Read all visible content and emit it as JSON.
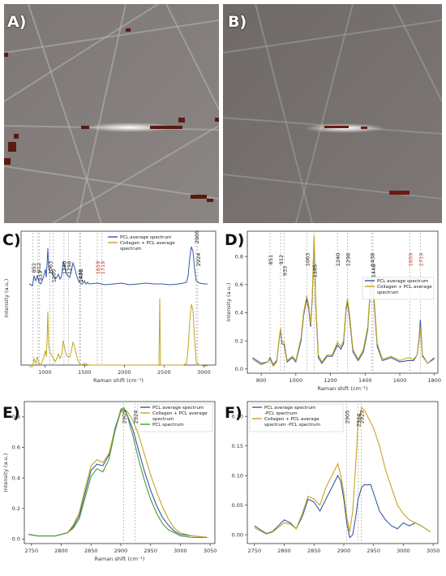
{
  "panels": {
    "a": "A)",
    "b": "B)",
    "c": "C)",
    "d": "D)",
    "e": "E)",
    "f": "F)"
  },
  "colors": {
    "pcl_avg": "#3558a8",
    "collagen_pcl": "#c4a61e",
    "pcl_spectrum": "#4c9a3a",
    "highlight_red": "#c0392b"
  },
  "chart_data": [
    {
      "id": "C",
      "type": "line",
      "xlabel": "Raman shift (cm⁻¹)",
      "ylabel": "Intensity (a.u.)",
      "xlim": [
        700,
        3150
      ],
      "x_ticks": [
        1000,
        1500,
        2000,
        2500,
        3000
      ],
      "legend": [
        "PCL average spectrum",
        "Collagen + PCL average spectrum"
      ],
      "legend_position": "top-center",
      "peak_labels": [
        {
          "x": 851,
          "text": "851",
          "color": "#222"
        },
        {
          "x": 912,
          "text": "912",
          "color": "#222"
        },
        {
          "x": 933,
          "text": "933",
          "color": "#222"
        },
        {
          "x": 1063,
          "text": "1063",
          "color": "#222"
        },
        {
          "x": 1105,
          "text": "1105",
          "color": "#222"
        },
        {
          "x": 1240,
          "text": "1240",
          "color": "#222"
        },
        {
          "x": 1298,
          "text": "1298",
          "color": "#222"
        },
        {
          "x": 1438,
          "text": "1438",
          "color": "#222"
        },
        {
          "x": 1446,
          "text": "1446",
          "color": "#222"
        },
        {
          "x": 1659,
          "text": "1659",
          "color": "#c0392b"
        },
        {
          "x": 1719,
          "text": "1719",
          "color": "#c0392b"
        },
        {
          "x": 2905,
          "text": "2905",
          "color": "#222"
        },
        {
          "x": 2924,
          "text": "2924",
          "color": "#222"
        }
      ]
    },
    {
      "id": "D",
      "type": "line",
      "xlabel": "Raman shift (cm⁻¹)",
      "ylabel": "Intensity (a.u.)",
      "xlim": [
        720,
        1820
      ],
      "ylim": [
        -0.03,
        0.98
      ],
      "x_ticks": [
        800,
        1000,
        1200,
        1400,
        1600,
        1800
      ],
      "y_ticks": [
        0.0,
        0.2,
        0.4,
        0.6,
        0.8
      ],
      "legend": [
        "PCL average spectrum",
        "Collagen + PCL average spectrum"
      ],
      "legend_position": "center-right",
      "peak_labels": [
        {
          "x": 851,
          "text": "851",
          "color": "#222"
        },
        {
          "x": 912,
          "text": "912",
          "color": "#222"
        },
        {
          "x": 933,
          "text": "933",
          "color": "#222"
        },
        {
          "x": 1063,
          "text": "1063",
          "color": "#222"
        },
        {
          "x": 1105,
          "text": "1105",
          "color": "#222"
        },
        {
          "x": 1240,
          "text": "1240",
          "color": "#222"
        },
        {
          "x": 1298,
          "text": "1298",
          "color": "#222"
        },
        {
          "x": 1438,
          "text": "1438",
          "color": "#222"
        },
        {
          "x": 1446,
          "text": "1446",
          "color": "#222"
        },
        {
          "x": 1659,
          "text": "1659",
          "color": "#c0392b"
        },
        {
          "x": 1719,
          "text": "1719",
          "color": "#c0392b"
        }
      ],
      "series": [
        {
          "name": "PCL average spectrum",
          "color": "#3558a8",
          "x": [
            750,
            800,
            840,
            851,
            870,
            890,
            905,
            912,
            920,
            933,
            950,
            980,
            1000,
            1030,
            1045,
            1063,
            1075,
            1085,
            1095,
            1105,
            1115,
            1130,
            1150,
            1180,
            1210,
            1240,
            1260,
            1275,
            1290,
            1298,
            1310,
            1330,
            1360,
            1390,
            1415,
            1430,
            1438,
            1446,
            1455,
            1470,
            1500,
            1550,
            1600,
            1650,
            1680,
            1700,
            1712,
            1719,
            1730,
            1760,
            1800
          ],
          "y": [
            0.08,
            0.04,
            0.05,
            0.08,
            0.03,
            0.06,
            0.22,
            0.28,
            0.18,
            0.17,
            0.05,
            0.08,
            0.05,
            0.2,
            0.38,
            0.5,
            0.42,
            0.3,
            0.5,
            0.93,
            0.45,
            0.08,
            0.04,
            0.09,
            0.09,
            0.17,
            0.14,
            0.18,
            0.42,
            0.48,
            0.36,
            0.12,
            0.06,
            0.12,
            0.28,
            0.56,
            0.63,
            0.58,
            0.42,
            0.16,
            0.06,
            0.08,
            0.05,
            0.06,
            0.06,
            0.1,
            0.22,
            0.35,
            0.1,
            0.04,
            0.08
          ]
        },
        {
          "name": "Collagen + PCL average spectrum",
          "color": "#c4a61e",
          "x": [
            750,
            800,
            840,
            851,
            870,
            890,
            905,
            912,
            920,
            933,
            950,
            980,
            1000,
            1030,
            1045,
            1063,
            1075,
            1085,
            1095,
            1105,
            1115,
            1130,
            1150,
            1180,
            1210,
            1240,
            1260,
            1275,
            1290,
            1298,
            1310,
            1330,
            1360,
            1390,
            1415,
            1430,
            1438,
            1446,
            1455,
            1470,
            1500,
            1550,
            1600,
            1650,
            1680,
            1700,
            1712,
            1719,
            1730,
            1760,
            1800
          ],
          "y": [
            0.07,
            0.03,
            0.05,
            0.07,
            0.02,
            0.05,
            0.23,
            0.29,
            0.2,
            0.19,
            0.06,
            0.09,
            0.06,
            0.22,
            0.4,
            0.52,
            0.45,
            0.32,
            0.52,
            0.95,
            0.48,
            0.1,
            0.05,
            0.1,
            0.1,
            0.19,
            0.16,
            0.2,
            0.44,
            0.5,
            0.39,
            0.14,
            0.07,
            0.14,
            0.3,
            0.58,
            0.65,
            0.6,
            0.45,
            0.18,
            0.07,
            0.09,
            0.06,
            0.08,
            0.07,
            0.1,
            0.2,
            0.3,
            0.09,
            0.04,
            0.07
          ]
        }
      ]
    },
    {
      "id": "E",
      "type": "line",
      "xlabel": "Raman shift (cm⁻¹)",
      "ylabel": "Intensity (a.u.)",
      "xlim": [
        2738,
        3058
      ],
      "ylim": [
        -0.03,
        0.9
      ],
      "x_ticks": [
        2750,
        2800,
        2850,
        2900,
        2950,
        3000,
        3050
      ],
      "y_ticks": [
        0.0,
        0.2,
        0.4,
        0.6,
        0.8
      ],
      "legend": [
        "PCL average spectrum",
        "Collagen + PCL average spectrum",
        "PCL spectrum"
      ],
      "legend_position": "top-right",
      "peak_labels": [
        {
          "x": 2905,
          "text": "2905",
          "color": "#222"
        },
        {
          "x": 2924,
          "text": "2924",
          "color": "#222"
        }
      ],
      "series": [
        {
          "name": "PCL average spectrum",
          "color": "#3558a8",
          "x": [
            2745,
            2760,
            2775,
            2790,
            2800,
            2810,
            2820,
            2830,
            2840,
            2850,
            2860,
            2870,
            2880,
            2890,
            2900,
            2905,
            2910,
            2920,
            2930,
            2940,
            2950,
            2960,
            2970,
            2980,
            2990,
            3000,
            3020,
            3045
          ],
          "y": [
            0.03,
            0.02,
            0.02,
            0.02,
            0.03,
            0.04,
            0.08,
            0.15,
            0.3,
            0.45,
            0.49,
            0.48,
            0.55,
            0.72,
            0.84,
            0.85,
            0.82,
            0.72,
            0.58,
            0.44,
            0.32,
            0.22,
            0.14,
            0.09,
            0.05,
            0.03,
            0.02,
            0.01
          ]
        },
        {
          "name": "Collagen + PCL average spectrum",
          "color": "#c4a61e",
          "x": [
            2745,
            2760,
            2775,
            2790,
            2800,
            2810,
            2820,
            2830,
            2840,
            2850,
            2860,
            2870,
            2880,
            2890,
            2900,
            2905,
            2910,
            2920,
            2930,
            2940,
            2950,
            2960,
            2970,
            2980,
            2990,
            3000,
            3020,
            3045
          ],
          "y": [
            0.03,
            0.02,
            0.02,
            0.02,
            0.03,
            0.04,
            0.09,
            0.17,
            0.33,
            0.48,
            0.52,
            0.5,
            0.56,
            0.71,
            0.83,
            0.85,
            0.84,
            0.78,
            0.68,
            0.55,
            0.42,
            0.31,
            0.21,
            0.13,
            0.07,
            0.04,
            0.02,
            0.01
          ]
        },
        {
          "name": "PCL spectrum",
          "color": "#4c9a3a",
          "x": [
            2745,
            2760,
            2775,
            2790,
            2800,
            2810,
            2820,
            2830,
            2840,
            2850,
            2860,
            2870,
            2880,
            2890,
            2900,
            2905,
            2910,
            2920,
            2930,
            2940,
            2950,
            2960,
            2970,
            2980,
            2990,
            3000,
            3020,
            3045
          ],
          "y": [
            0.03,
            0.02,
            0.02,
            0.02,
            0.03,
            0.04,
            0.07,
            0.13,
            0.27,
            0.41,
            0.46,
            0.44,
            0.52,
            0.7,
            0.85,
            0.86,
            0.82,
            0.68,
            0.52,
            0.38,
            0.26,
            0.17,
            0.1,
            0.06,
            0.04,
            0.02,
            0.01,
            0.01
          ]
        }
      ]
    },
    {
      "id": "F",
      "type": "line",
      "xlim": [
        2738,
        3058
      ],
      "ylim": [
        -0.015,
        0.225
      ],
      "x_ticks": [
        2750,
        2800,
        2850,
        2900,
        2950,
        3000,
        3050
      ],
      "y_ticks": [
        0.0,
        0.05,
        0.1,
        0.15,
        0.2
      ],
      "y_tick_labels": [
        "0.00",
        "0.05",
        "0.10",
        "0.15",
        "0.20"
      ],
      "legend": [
        "PCL average spectrum -PCL spectrum",
        "Collagen + PCL average spectrum -PCL spectrum"
      ],
      "legend_position": "top-left",
      "peak_labels": [
        {
          "x": 2905,
          "text": "2905",
          "color": "#222"
        },
        {
          "x": 2924,
          "text": "2924",
          "color": "#222"
        },
        {
          "x": 2929,
          "text": "2929",
          "color": "#222"
        }
      ],
      "series": [
        {
          "name": "PCL average spectrum -PCL spectrum",
          "color": "#3558a8",
          "x": [
            2750,
            2760,
            2770,
            2780,
            2790,
            2800,
            2810,
            2820,
            2830,
            2840,
            2850,
            2860,
            2870,
            2880,
            2890,
            2895,
            2900,
            2905,
            2910,
            2915,
            2920,
            2924,
            2930,
            2935,
            2940,
            2945,
            2950,
            2960,
            2970,
            2980,
            2990,
            3000,
            3010,
            3020,
            3030,
            3045
          ],
          "y": [
            0.015,
            0.008,
            0.002,
            0.005,
            0.015,
            0.025,
            0.02,
            0.01,
            0.03,
            0.06,
            0.055,
            0.04,
            0.06,
            0.08,
            0.1,
            0.09,
            0.06,
            0.02,
            -0.005,
            0.0,
            0.03,
            0.06,
            0.08,
            0.085,
            0.084,
            0.085,
            0.07,
            0.04,
            0.025,
            0.015,
            0.01,
            0.02,
            0.015,
            0.02,
            0.015,
            0.005
          ]
        },
        {
          "name": "Collagen + PCL average spectrum -PCL spectrum",
          "color": "#c4a61e",
          "x": [
            2750,
            2760,
            2770,
            2780,
            2790,
            2800,
            2810,
            2820,
            2830,
            2840,
            2850,
            2860,
            2870,
            2880,
            2890,
            2895,
            2900,
            2905,
            2910,
            2915,
            2920,
            2924,
            2930,
            2935,
            2940,
            2945,
            2950,
            2960,
            2970,
            2980,
            2990,
            3000,
            3010,
            3020,
            3030,
            3045
          ],
          "y": [
            0.012,
            0.006,
            0.001,
            0.004,
            0.012,
            0.02,
            0.018,
            0.01,
            0.035,
            0.065,
            0.06,
            0.05,
            0.08,
            0.1,
            0.12,
            0.1,
            0.07,
            0.03,
            0.005,
            0.04,
            0.12,
            0.19,
            0.215,
            0.21,
            0.2,
            0.19,
            0.18,
            0.15,
            0.11,
            0.08,
            0.05,
            0.035,
            0.025,
            0.02,
            0.015,
            0.005
          ]
        }
      ]
    }
  ]
}
